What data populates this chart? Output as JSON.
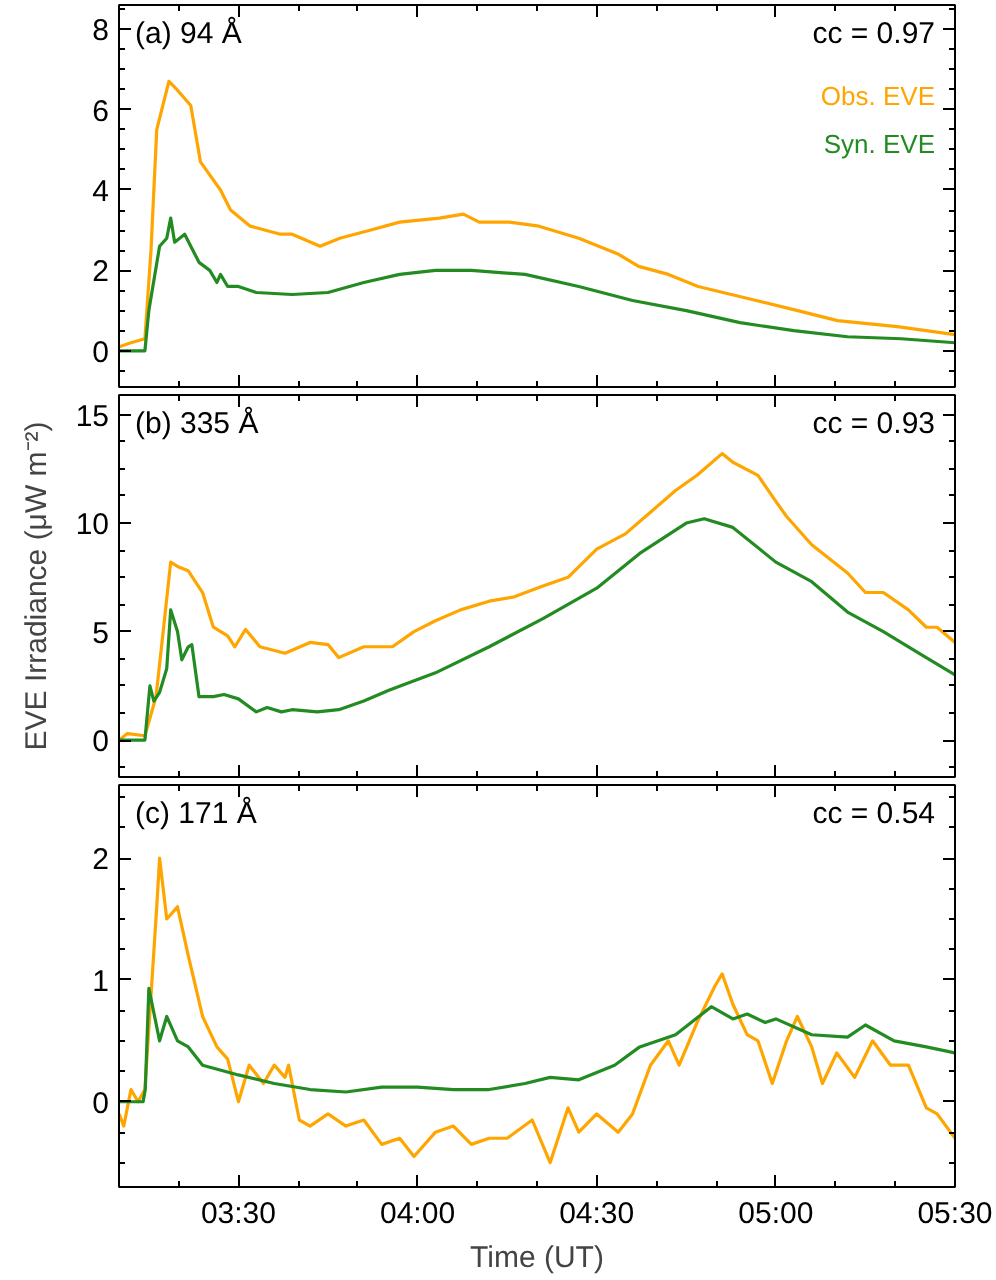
{
  "chart_data": [
    {
      "type": "line",
      "annotations": [
        "(a) 94 Å",
        "cc = 0.97"
      ],
      "legend": "top right",
      "tick_labels": "y",
      "grid": false,
      "xlim": [
        3.1667,
        5.5
      ],
      "xticks": [
        {
          "value": 3.5,
          "label": null
        },
        {
          "value": 4.0,
          "label": null
        },
        {
          "value": 4.5,
          "label": null
        },
        {
          "value": 5.0,
          "label": null
        },
        {
          "value": 5.5,
          "label": null
        }
      ],
      "ylim": [
        -0.9,
        8.6
      ],
      "yticks": [
        0,
        2,
        4,
        6,
        8
      ],
      "series": [
        {
          "name": "Obs. EVE",
          "color": "#ffa500",
          "x": [
            3.167,
            3.2,
            3.239,
            3.256,
            3.272,
            3.306,
            3.328,
            3.367,
            3.394,
            3.45,
            3.478,
            3.533,
            3.617,
            3.65,
            3.728,
            3.783,
            3.867,
            3.95,
            4.061,
            4.128,
            4.172,
            4.256,
            4.339,
            4.45,
            4.561,
            4.617,
            4.7,
            4.783,
            4.922,
            5.061,
            5.172,
            5.339,
            5.5
          ],
          "values": [
            0.1,
            0.2,
            0.3,
            2.5,
            5.5,
            6.7,
            6.5,
            6.1,
            4.7,
            4.0,
            3.5,
            3.1,
            2.9,
            2.9,
            2.6,
            2.8,
            3.0,
            3.2,
            3.3,
            3.4,
            3.2,
            3.2,
            3.1,
            2.8,
            2.4,
            2.1,
            1.9,
            1.6,
            1.3,
            1.0,
            0.75,
            0.6,
            0.4
          ]
        },
        {
          "name": "Syn. EVE",
          "color": "#228b22",
          "x": [
            3.167,
            3.239,
            3.25,
            3.28,
            3.3,
            3.311,
            3.322,
            3.35,
            3.39,
            3.42,
            3.44,
            3.45,
            3.47,
            3.5,
            3.55,
            3.65,
            3.75,
            3.85,
            3.95,
            4.05,
            4.15,
            4.3,
            4.45,
            4.6,
            4.75,
            4.9,
            5.05,
            5.2,
            5.35,
            5.5
          ],
          "values": [
            0,
            0,
            1.0,
            2.6,
            2.8,
            3.3,
            2.7,
            2.9,
            2.2,
            2.0,
            1.7,
            1.9,
            1.6,
            1.6,
            1.45,
            1.4,
            1.45,
            1.7,
            1.9,
            2.0,
            2.0,
            1.9,
            1.6,
            1.25,
            1.0,
            0.7,
            0.5,
            0.35,
            0.3,
            0.2
          ]
        }
      ]
    },
    {
      "type": "line",
      "annotations": [
        "(b) 335 Å",
        "cc = 0.93"
      ],
      "ylabel": "EVE Irradiance (μW m⁻²)",
      "tick_labels": "y",
      "grid": false,
      "xlim": [
        3.1667,
        5.5
      ],
      "xticks": [
        {
          "value": 3.5,
          "label": null
        },
        {
          "value": 4.0,
          "label": null
        },
        {
          "value": 4.5,
          "label": null
        },
        {
          "value": 5.0,
          "label": null
        },
        {
          "value": 5.5,
          "label": null
        }
      ],
      "ylim": [
        -1.7,
        15.9
      ],
      "yticks": [
        0,
        5,
        10,
        15
      ],
      "series": [
        {
          "color": "#ffa500",
          "x": [
            3.167,
            3.19,
            3.239,
            3.27,
            3.29,
            3.311,
            3.33,
            3.36,
            3.4,
            3.43,
            3.47,
            3.49,
            3.52,
            3.56,
            3.63,
            3.7,
            3.75,
            3.78,
            3.85,
            3.93,
            3.99,
            4.05,
            4.12,
            4.2,
            4.27,
            4.35,
            4.42,
            4.5,
            4.58,
            4.65,
            4.72,
            4.78,
            4.85,
            4.88,
            4.95,
            5.0,
            5.03,
            5.1,
            5.2,
            5.25,
            5.3,
            5.37,
            5.42,
            5.45,
            5.5
          ],
          "values": [
            0,
            0.3,
            0.2,
            2,
            5,
            8.2,
            8.0,
            7.8,
            6.8,
            5.2,
            4.8,
            4.3,
            5.1,
            4.3,
            4.0,
            4.5,
            4.4,
            3.8,
            4.3,
            4.3,
            5.0,
            5.5,
            6.0,
            6.4,
            6.6,
            7.1,
            7.5,
            8.8,
            9.5,
            10.5,
            11.5,
            12.2,
            13.2,
            12.8,
            12.2,
            11.0,
            10.3,
            9.0,
            7.7,
            6.8,
            6.8,
            6.0,
            5.2,
            5.2,
            4.5
          ]
        },
        {
          "color": "#228b22",
          "x": [
            3.167,
            3.239,
            3.253,
            3.264,
            3.28,
            3.3,
            3.311,
            3.33,
            3.342,
            3.36,
            3.37,
            3.39,
            3.43,
            3.46,
            3.5,
            3.55,
            3.58,
            3.62,
            3.65,
            3.72,
            3.78,
            3.85,
            3.92,
            4.05,
            4.2,
            4.35,
            4.5,
            4.62,
            4.75,
            4.8,
            4.88,
            5.0,
            5.1,
            5.2,
            5.3,
            5.4,
            5.5
          ],
          "values": [
            0,
            0,
            2.5,
            1.8,
            2.2,
            3.3,
            6.0,
            5.0,
            3.7,
            4.3,
            4.4,
            2.0,
            2.0,
            2.1,
            1.9,
            1.3,
            1.5,
            1.3,
            1.4,
            1.3,
            1.4,
            1.8,
            2.3,
            3.1,
            4.3,
            5.6,
            7.0,
            8.6,
            10.0,
            10.2,
            9.8,
            8.2,
            7.3,
            5.9,
            5.0,
            4.0,
            3.0
          ]
        }
      ]
    },
    {
      "type": "line",
      "annotations": [
        "(c) 171 Å",
        "cc = 0.54"
      ],
      "xlabel": "Time (UT)",
      "grid": false,
      "xlim": [
        3.1667,
        5.5
      ],
      "xticks": [
        {
          "value": 3.5,
          "label": "03:30"
        },
        {
          "value": 4.0,
          "label": "04:00"
        },
        {
          "value": 4.5,
          "label": "04:30"
        },
        {
          "value": 5.0,
          "label": "05:00"
        },
        {
          "value": 5.5,
          "label": "05:30"
        }
      ],
      "ylim": [
        -0.7,
        2.6
      ],
      "yticks": [
        0,
        1,
        2
      ],
      "series": [
        {
          "color": "#ffa500",
          "x": [
            3.167,
            3.18,
            3.2,
            3.22,
            3.239,
            3.272,
            3.28,
            3.3,
            3.33,
            3.36,
            3.4,
            3.44,
            3.47,
            3.5,
            3.53,
            3.57,
            3.6,
            3.63,
            3.64,
            3.67,
            3.7,
            3.75,
            3.8,
            3.85,
            3.9,
            3.95,
            3.99,
            4.05,
            4.1,
            4.15,
            4.2,
            4.25,
            4.32,
            4.37,
            4.42,
            4.45,
            4.5,
            4.56,
            4.6,
            4.65,
            4.7,
            4.73,
            4.78,
            4.83,
            4.85,
            4.88,
            4.92,
            4.95,
            4.99,
            5.03,
            5.06,
            5.1,
            5.13,
            5.17,
            5.22,
            5.27,
            5.32,
            5.37,
            5.42,
            5.45,
            5.5
          ],
          "values": [
            -0.1,
            -0.2,
            0.1,
            0.0,
            0.1,
            1.6,
            2.0,
            1.5,
            1.6,
            1.2,
            0.7,
            0.45,
            0.35,
            0.0,
            0.3,
            0.15,
            0.3,
            0.2,
            0.3,
            -0.15,
            -0.2,
            -0.1,
            -0.2,
            -0.15,
            -0.35,
            -0.3,
            -0.45,
            -0.25,
            -0.2,
            -0.35,
            -0.3,
            -0.3,
            -0.15,
            -0.5,
            -0.05,
            -0.25,
            -0.1,
            -0.25,
            -0.1,
            0.3,
            0.5,
            0.3,
            0.65,
            0.95,
            1.05,
            0.8,
            0.55,
            0.5,
            0.15,
            0.5,
            0.7,
            0.45,
            0.15,
            0.4,
            0.2,
            0.5,
            0.3,
            0.3,
            -0.05,
            -0.1,
            -0.3
          ]
        },
        {
          "color": "#228b22",
          "x": [
            3.167,
            3.234,
            3.24,
            3.25,
            3.28,
            3.3,
            3.33,
            3.36,
            3.4,
            3.5,
            3.6,
            3.7,
            3.8,
            3.9,
            4.0,
            4.1,
            4.2,
            4.3,
            4.37,
            4.45,
            4.55,
            4.62,
            4.72,
            4.82,
            4.88,
            4.92,
            4.97,
            5.0,
            5.1,
            5.2,
            5.25,
            5.33,
            5.42,
            5.5
          ],
          "values": [
            0,
            0,
            0.1,
            0.93,
            0.5,
            0.7,
            0.5,
            0.45,
            0.3,
            0.22,
            0.15,
            0.1,
            0.08,
            0.12,
            0.12,
            0.1,
            0.1,
            0.15,
            0.2,
            0.18,
            0.3,
            0.45,
            0.55,
            0.78,
            0.68,
            0.72,
            0.65,
            0.68,
            0.55,
            0.53,
            0.63,
            0.5,
            0.45,
            0.4
          ]
        }
      ]
    }
  ]
}
